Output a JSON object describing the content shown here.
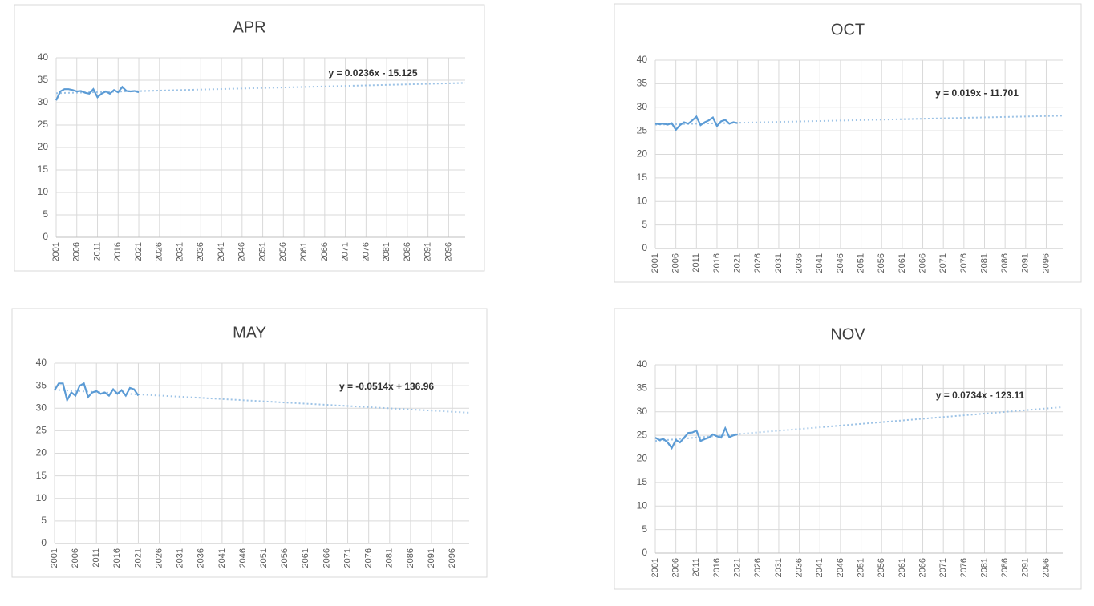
{
  "chart_data": [
    {
      "type": "line",
      "title": "APR",
      "x": [
        2001,
        2002,
        2003,
        2004,
        2005,
        2006,
        2007,
        2008,
        2009,
        2010,
        2011,
        2012,
        2013,
        2014,
        2015,
        2016,
        2017,
        2018,
        2019,
        2020,
        2021
      ],
      "values": [
        30.5,
        32.5,
        33,
        33,
        32.8,
        32.5,
        32.6,
        32.2,
        32,
        33,
        31.2,
        32,
        32.5,
        32,
        32.8,
        32.3,
        33.5,
        32.6,
        32.5,
        32.6,
        32.3
      ],
      "color": "#5b9bd5",
      "trendline": {
        "label": "y = 0.0236x - 15.125",
        "x": [
          2001,
          2100
        ],
        "values": [
          32.1,
          34.4
        ],
        "color": "#9dc3e6"
      },
      "xlim": [
        2001,
        2100
      ],
      "xticks": [
        2001,
        2006,
        2011,
        2016,
        2021,
        2026,
        2031,
        2036,
        2041,
        2046,
        2051,
        2056,
        2061,
        2066,
        2071,
        2076,
        2081,
        2086,
        2091,
        2096
      ],
      "ylim": [
        0,
        40
      ],
      "yticks": [
        0,
        5,
        10,
        15,
        20,
        25,
        30,
        35,
        40
      ],
      "grid": true
    },
    {
      "type": "line",
      "title": "OCT",
      "x": [
        2001,
        2002,
        2003,
        2004,
        2005,
        2006,
        2007,
        2008,
        2009,
        2010,
        2011,
        2012,
        2013,
        2014,
        2015,
        2016,
        2017,
        2018,
        2019,
        2020,
        2021
      ],
      "values": [
        26.5,
        26.4,
        26.5,
        26.3,
        26.6,
        25.2,
        26.2,
        26.8,
        26.5,
        27.2,
        28,
        26.2,
        26.8,
        27.2,
        27.8,
        26,
        27,
        27.3,
        26.5,
        26.8,
        26.6
      ],
      "color": "#5b9bd5",
      "trendline": {
        "label": "y = 0.019x - 11.701",
        "x": [
          2001,
          2100
        ],
        "values": [
          26.3,
          28.2
        ],
        "color": "#9dc3e6"
      },
      "xlim": [
        2001,
        2100
      ],
      "xticks": [
        2001,
        2006,
        2011,
        2016,
        2021,
        2026,
        2031,
        2036,
        2041,
        2046,
        2051,
        2056,
        2061,
        2066,
        2071,
        2076,
        2081,
        2086,
        2091,
        2096
      ],
      "ylim": [
        0,
        40
      ],
      "yticks": [
        0,
        5,
        10,
        15,
        20,
        25,
        30,
        35,
        40
      ],
      "grid": true
    },
    {
      "type": "line",
      "title": "MAY",
      "x": [
        2001,
        2002,
        2003,
        2004,
        2005,
        2006,
        2007,
        2008,
        2009,
        2010,
        2011,
        2012,
        2013,
        2014,
        2015,
        2016,
        2017,
        2018,
        2019,
        2020,
        2021
      ],
      "values": [
        34,
        35.5,
        35.5,
        31.8,
        33.5,
        32.8,
        35,
        35.5,
        32.5,
        33.5,
        33.8,
        33.2,
        33.5,
        32.8,
        34.2,
        33.2,
        34,
        32.8,
        34.5,
        34.2,
        32.8
      ],
      "color": "#5b9bd5",
      "trendline": {
        "label": "y = -0.0514x + 136.96",
        "x": [
          2001,
          2100
        ],
        "values": [
          34.1,
          29
        ],
        "color": "#9dc3e6"
      },
      "xlim": [
        2001,
        2100
      ],
      "xticks": [
        2001,
        2006,
        2011,
        2016,
        2021,
        2026,
        2031,
        2036,
        2041,
        2046,
        2051,
        2056,
        2061,
        2066,
        2071,
        2076,
        2081,
        2086,
        2091,
        2096
      ],
      "ylim": [
        0,
        40
      ],
      "yticks": [
        0,
        5,
        10,
        15,
        20,
        25,
        30,
        35,
        40
      ],
      "grid": true
    },
    {
      "type": "line",
      "title": "NOV",
      "x": [
        2001,
        2002,
        2003,
        2004,
        2005,
        2006,
        2007,
        2008,
        2009,
        2010,
        2011,
        2012,
        2013,
        2014,
        2015,
        2016,
        2017,
        2018,
        2019,
        2020,
        2021
      ],
      "values": [
        24.5,
        24,
        24.2,
        23.5,
        22.3,
        24,
        23.5,
        24.5,
        25.5,
        25.6,
        26,
        23.8,
        24.2,
        24.5,
        25.2,
        24.8,
        24.5,
        26.5,
        24.6,
        25,
        25.2
      ],
      "color": "#5b9bd5",
      "trendline": {
        "label": "y = 0.0734x - 123.11",
        "x": [
          2001,
          2100
        ],
        "values": [
          23.8,
          31
        ],
        "color": "#9dc3e6"
      },
      "xlim": [
        2001,
        2100
      ],
      "xticks": [
        2001,
        2006,
        2011,
        2016,
        2021,
        2026,
        2031,
        2036,
        2041,
        2046,
        2051,
        2056,
        2061,
        2066,
        2071,
        2076,
        2081,
        2086,
        2091,
        2096
      ],
      "ylim": [
        0,
        40
      ],
      "yticks": [
        0,
        5,
        10,
        15,
        20,
        25,
        30,
        35,
        40
      ],
      "grid": true
    }
  ]
}
